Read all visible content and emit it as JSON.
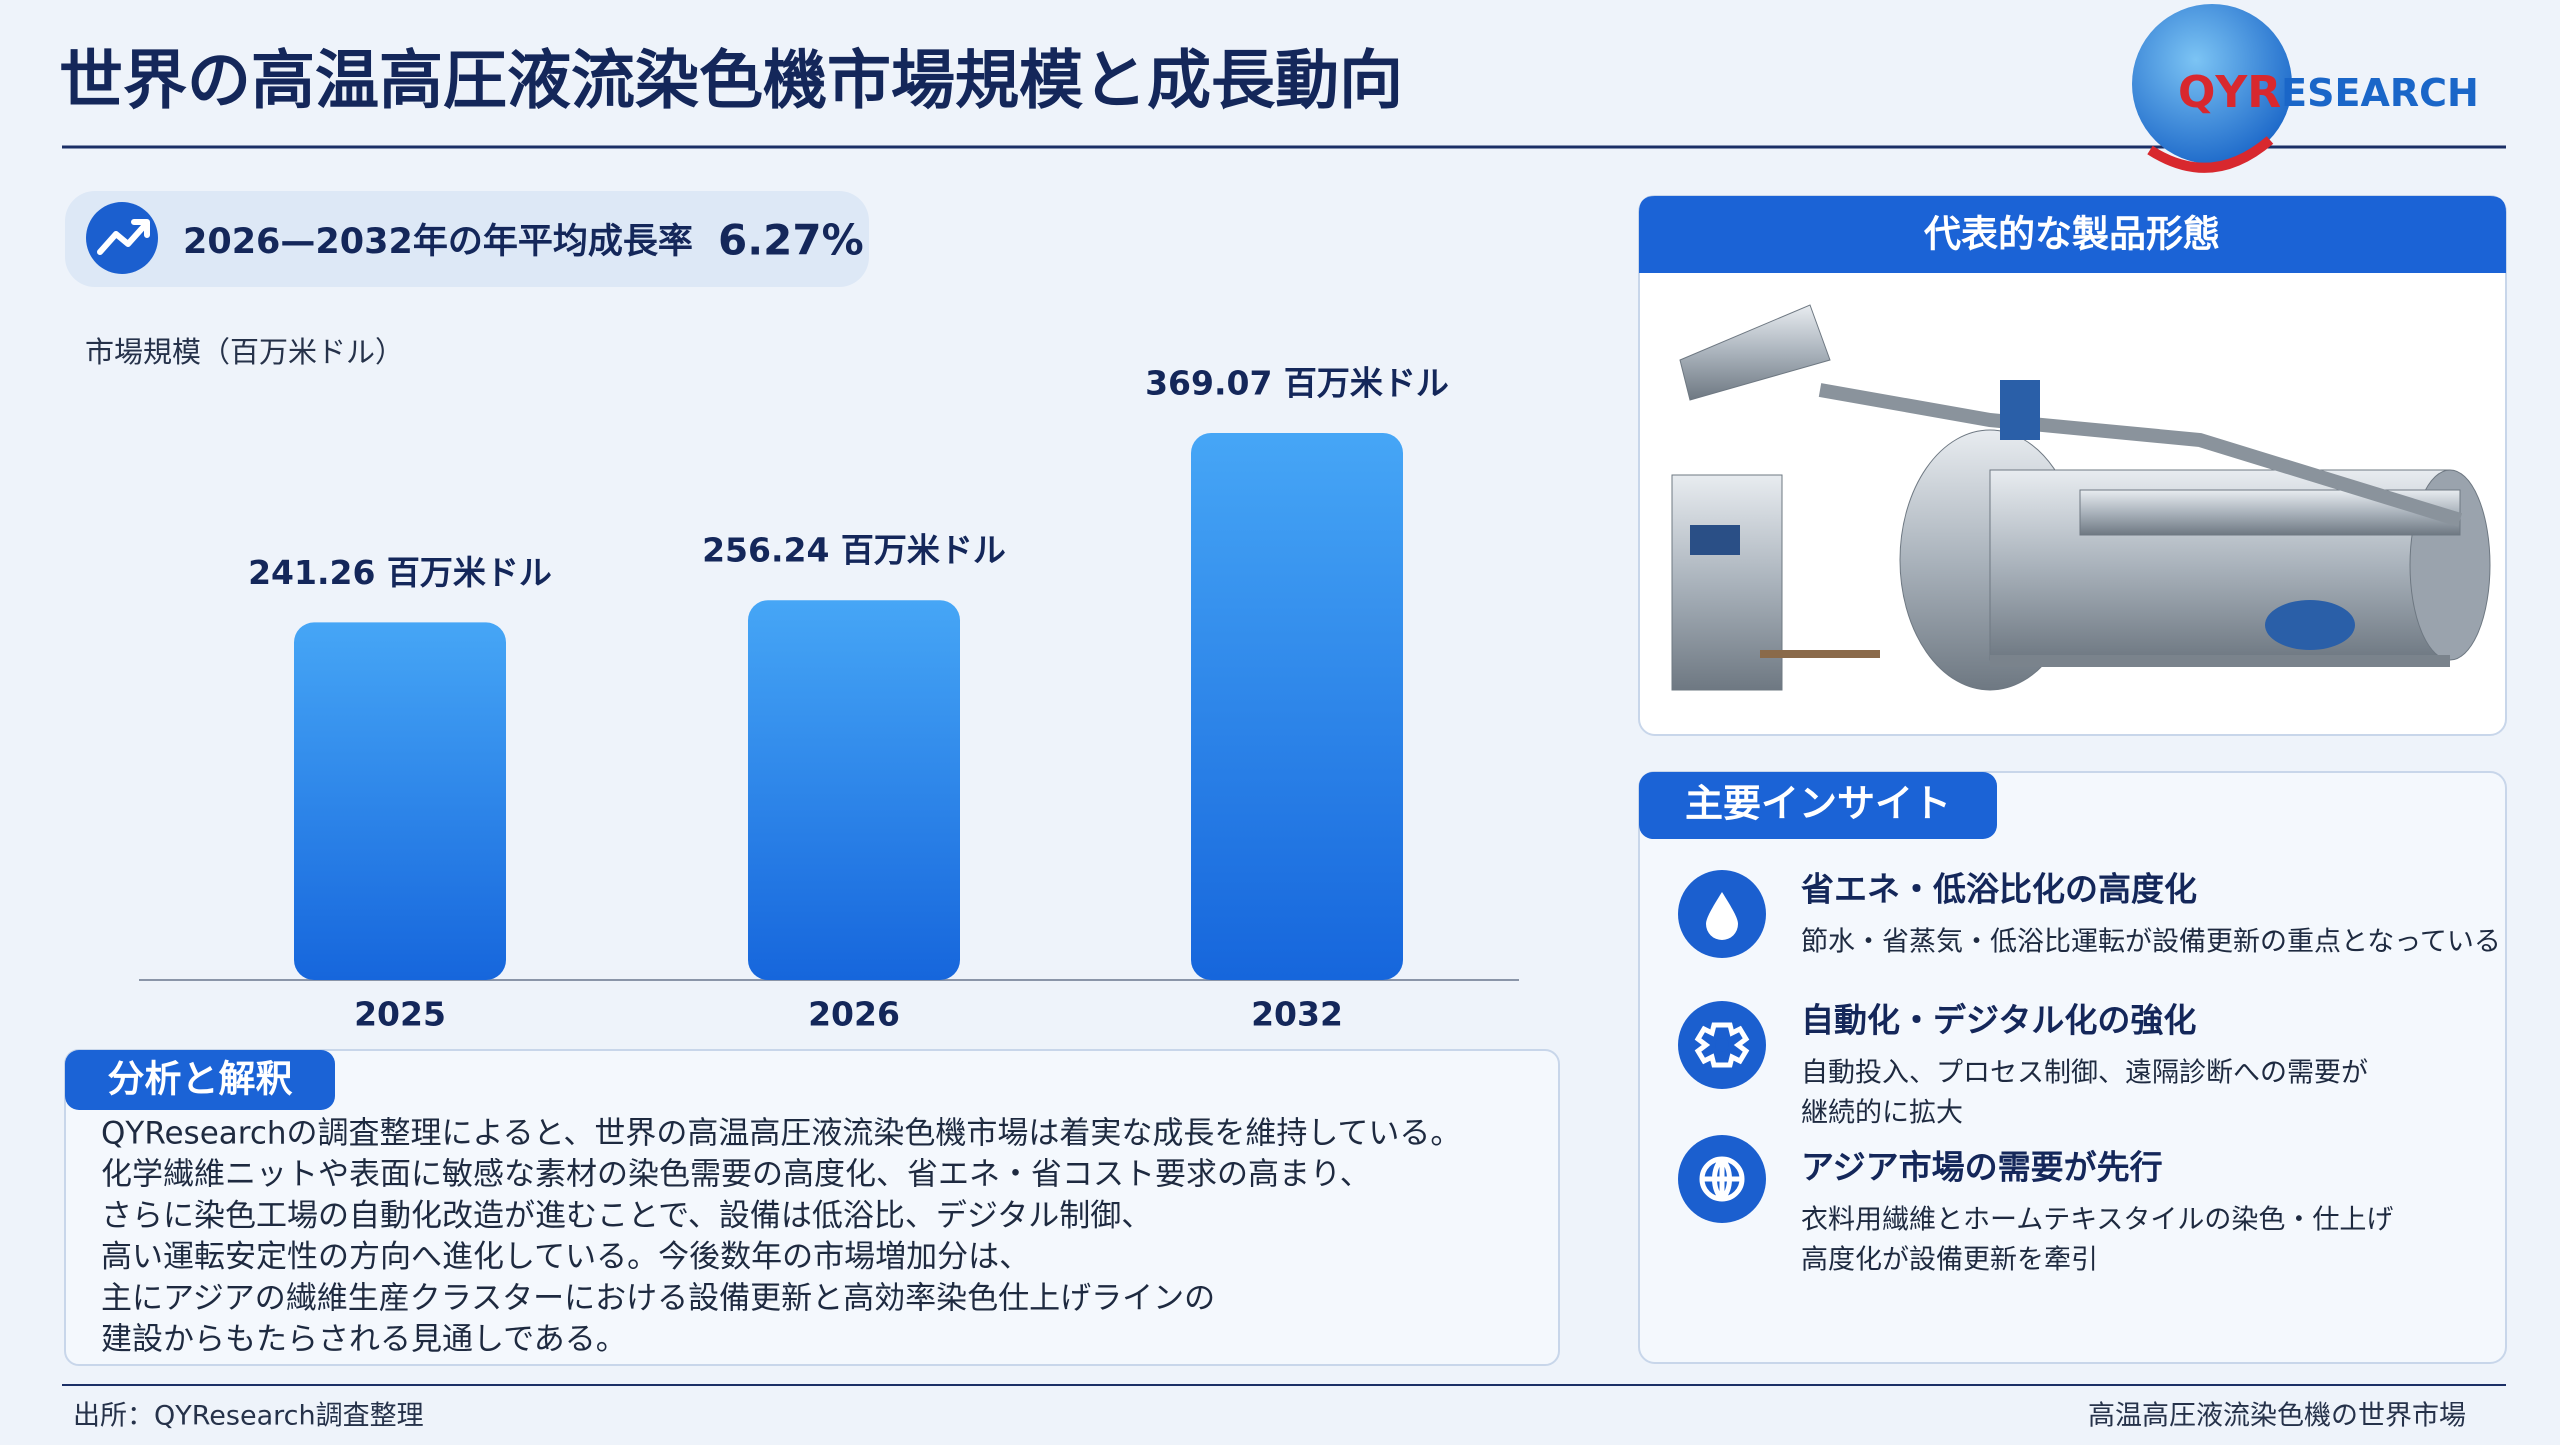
{
  "header": {
    "title": "世界の高温高圧液流染色機市場規模と成長動向",
    "logo_lead": "QYR",
    "logo_rest": "ESEARCH"
  },
  "cagr": {
    "label": "2026—2032年の年平均成長率",
    "value": "6.27%"
  },
  "chart_data": {
    "type": "bar",
    "y_label": "市場規模（百万米ドル）",
    "categories": [
      "2025",
      "2026",
      "2032"
    ],
    "values": [
      241.26,
      256.24,
      369.07
    ],
    "value_labels": [
      "241.26 百万米ドル",
      "256.24 百万米ドル",
      "369.07 百万米ドル"
    ],
    "color": "#2a86ec"
  },
  "analysis": {
    "title": "分析と解釈",
    "lines": [
      "QYResearchの調査整理によると、世界の高温高圧液流染色機市場は着実な成長を維持している。",
      "化学繊維ニットや表面に敏感な素材の染色需要の高度化、省エネ・省コスト要求の高まり、",
      "さらに染色工場の自動化改造が進むことで、設備は低浴比、デジタル制御、",
      "高い運転安定性の方向へ進化している。今後数年の市場増加分は、",
      "主にアジアの繊維生産クラスターにおける設備更新と高効率染色仕上げラインの",
      "建設からもたらされる見通しである。"
    ]
  },
  "product": {
    "title": "代表的な製品形態"
  },
  "insights": {
    "title": "主要インサイト",
    "items": [
      {
        "title": "省エネ・低浴比化の高度化",
        "lines": [
          "節水・省蒸気・低浴比運転が設備更新の重点となっている"
        ]
      },
      {
        "title": "自動化・デジタル化の強化",
        "lines": [
          "自動投入、プロセス制御、遠隔診断への需要が",
          "継続的に拡大"
        ]
      },
      {
        "title": "アジア市場の需要が先行",
        "lines": [
          "衣料用繊維とホームテキスタイルの染色・仕上げ",
          "高度化が設備更新を牽引"
        ]
      }
    ]
  },
  "footer": {
    "source": "出所：QYResearch調査整理",
    "right": "高温高圧液流染色機の世界市場"
  }
}
